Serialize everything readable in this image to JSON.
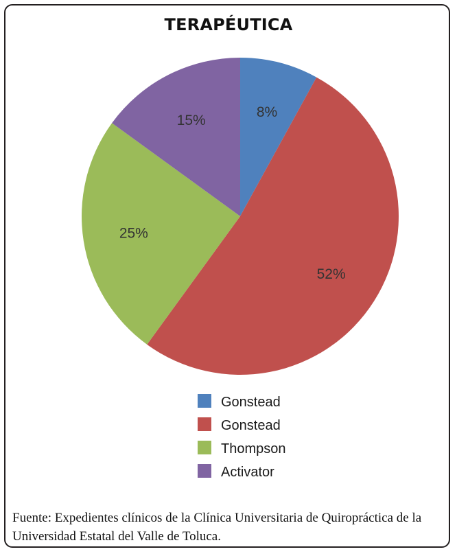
{
  "title": "TERAPÉUTICA",
  "chart_data": {
    "type": "pie",
    "title": "TERAPÉUTICA",
    "categories": [
      "Gonstead",
      "Gonstead",
      "Thompson",
      "Activator"
    ],
    "values": [
      8,
      52,
      25,
      15
    ],
    "labels": [
      "8%",
      "52%",
      "25%",
      "15%"
    ],
    "colors": [
      "#4f81bd",
      "#c0504d",
      "#9bbb59",
      "#8064a2"
    ],
    "legend": "bottom",
    "start": "top, clockwise"
  },
  "legend": {
    "items": [
      {
        "label": "Gonstead",
        "color": "#4f81bd"
      },
      {
        "label": "Gonstead",
        "color": "#c0504d"
      },
      {
        "label": "Thompson",
        "color": "#9bbb59"
      },
      {
        "label": "Activator",
        "color": "#8064a2"
      }
    ]
  },
  "source": "Fuente: Expedientes clínicos de la Clínica Universitaria de Quiropráctica de la Universidad Estatal del Valle de Toluca."
}
